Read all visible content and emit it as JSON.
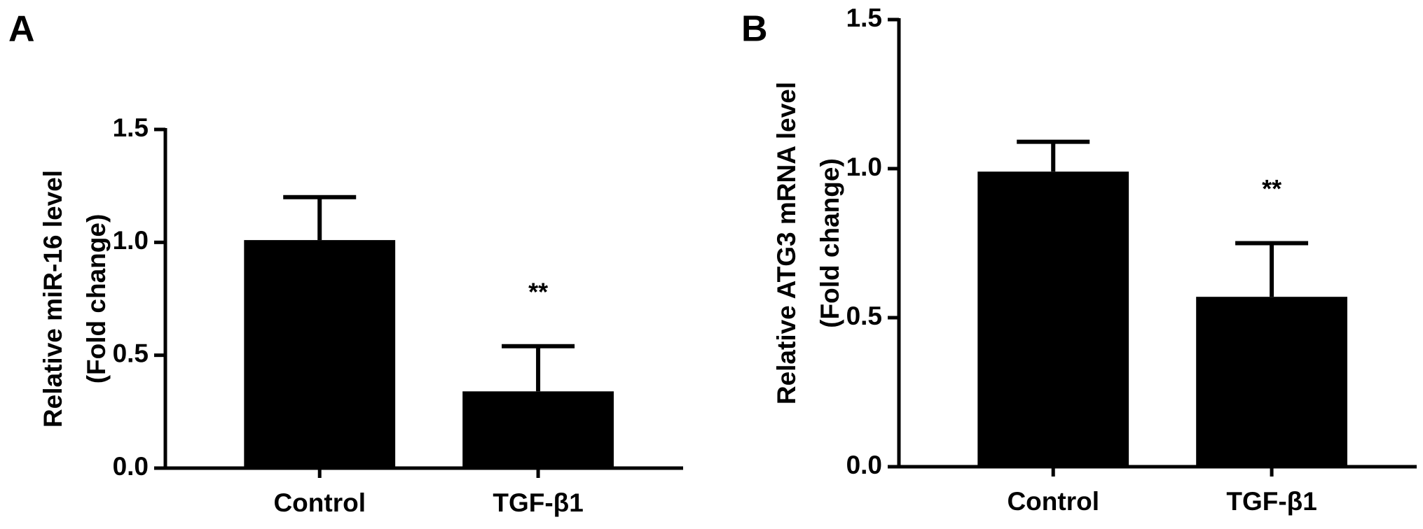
{
  "chart_data": [
    {
      "type": "bar",
      "panel_label": "A",
      "y_label": [
        "Relative miR-16 level",
        "(Fold change)"
      ],
      "categories": [
        "Control",
        "TGF-β1"
      ],
      "values": [
        1.01,
        0.34
      ],
      "errors": [
        0.19,
        0.2
      ],
      "annotations": [
        null,
        "**"
      ],
      "color": "#000000",
      "ylim": [
        0,
        1.5
      ],
      "yticks": [
        {
          "value": 0,
          "label": "0.0"
        },
        0.5,
        {
          "value": 1,
          "label": "1.0"
        },
        1.5
      ]
    },
    {
      "type": "bar",
      "panel_label": "B",
      "y_label": [
        "Relative ATG3 mRNA level",
        "(Fold change)"
      ],
      "categories": [
        "Control",
        "TGF-β1"
      ],
      "values": [
        0.99,
        0.57
      ],
      "errors": [
        0.1,
        0.18
      ],
      "annotations": [
        null,
        "**"
      ],
      "color": "#000000",
      "ylim": [
        0,
        1.5
      ],
      "yticks": [
        {
          "value": 0,
          "label": "0.0"
        },
        0.5,
        {
          "value": 1,
          "label": "1.0"
        },
        1.5
      ]
    }
  ]
}
